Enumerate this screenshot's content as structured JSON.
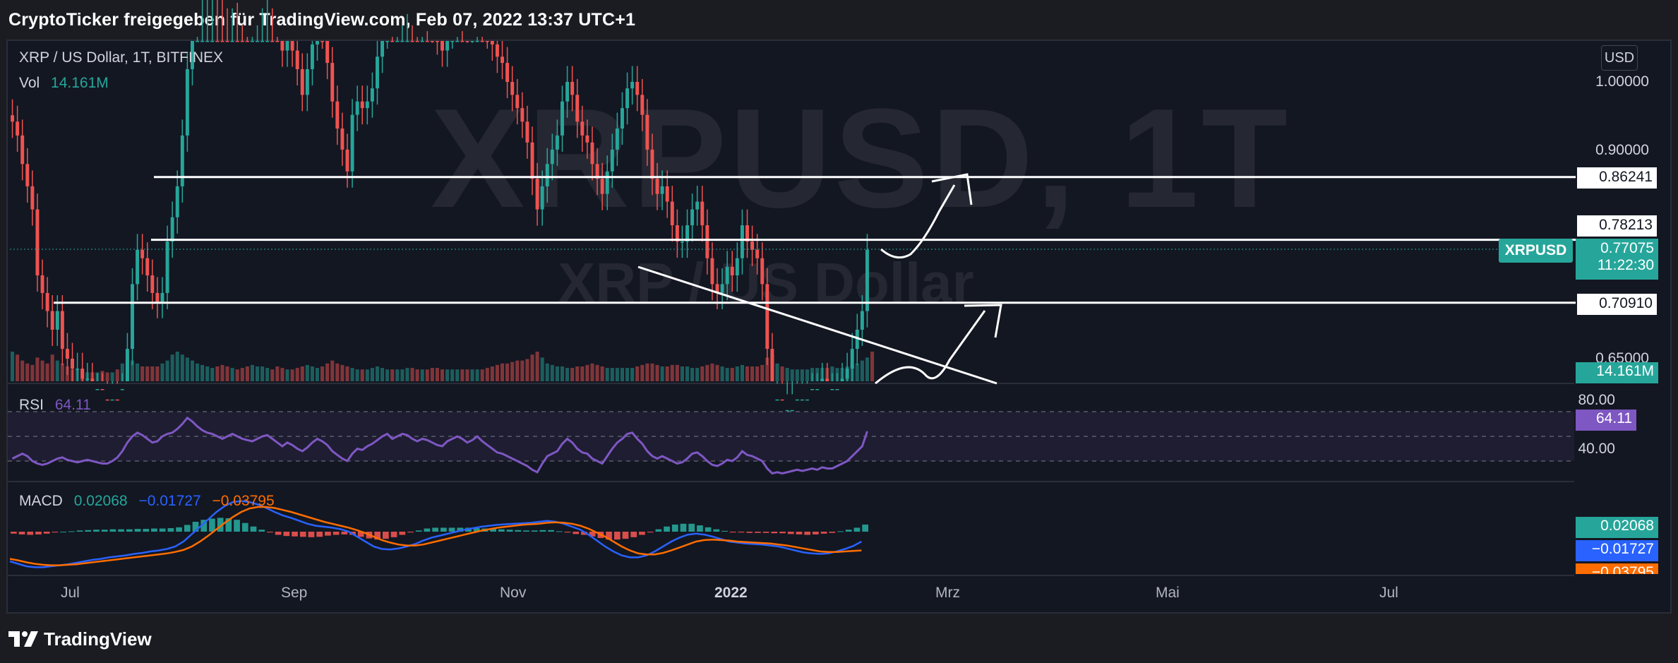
{
  "header": {
    "title": "CryptoTicker freigegeben für TradingView.com, Feb 07, 2022 13:37 UTC+1"
  },
  "legend": {
    "symbol_line": "XRP / US Dollar, 1T, BITFINEX",
    "vol_label": "Vol",
    "vol_value": "14.161M"
  },
  "watermark": {
    "main": "XRPUSD, 1T",
    "sub": "XRP / US Dollar"
  },
  "currency_button": "USD",
  "price_axis": {
    "labels": [
      "1.00000",
      "0.90000",
      "0.65000"
    ]
  },
  "price_tags": {
    "level_1": "0.86241",
    "level_2": "0.78213",
    "level_3": "0.70910",
    "symbol_label": "XRPUSD",
    "current_price": "0.77075",
    "countdown": "11:22:30",
    "volume": "14.161M"
  },
  "rsi": {
    "label": "RSI",
    "value": "64.11",
    "axis_80": "80.00",
    "axis_40": "40.00",
    "tag": "64.11"
  },
  "macd": {
    "label": "MACD",
    "hist": "0.02068",
    "macd_line": "−0.01727",
    "signal": "−0.03795",
    "tag_hist": "0.02068",
    "tag_macd": "−0.01727",
    "tag_signal": "−0.03795"
  },
  "time_axis": [
    "Jul",
    "Sep",
    "Nov",
    "2022",
    "Mrz",
    "Mai",
    "Jul"
  ],
  "footer": {
    "brand": "TradingView"
  },
  "colors": {
    "up": "#26a69a",
    "down": "#ef5350",
    "rsi": "#7e57c2",
    "macd": "#2962ff",
    "signal": "#ff6d00",
    "background": "#131722"
  },
  "chart_data": [
    {
      "type": "candlestick",
      "title": "XRP / US Dollar, 1T, BITFINEX",
      "x_ticks": [
        "Jul",
        "Sep",
        "Nov",
        "2022",
        "Mrz",
        "Mai",
        "Jul"
      ],
      "y_ticks": [
        1.0,
        0.9,
        0.65
      ],
      "price": [
        0.94,
        0.92,
        0.88,
        0.85,
        0.82,
        0.74,
        0.72,
        0.7,
        0.68,
        0.7,
        0.66,
        0.65,
        0.64,
        0.64,
        0.63,
        0.63,
        0.62,
        0.62,
        0.61,
        0.6,
        0.61,
        0.6,
        0.62,
        0.66,
        0.73,
        0.77,
        0.76,
        0.74,
        0.72,
        0.71,
        0.72,
        0.78,
        0.81,
        0.85,
        0.92,
        1.02,
        1.1,
        1.17,
        1.18,
        1.22,
        1.24,
        1.2,
        1.17,
        1.15,
        1.17,
        1.16,
        1.12,
        1.1,
        1.12,
        1.15,
        1.18,
        1.2,
        1.15,
        1.1,
        1.05,
        1.07,
        1.05,
        1.02,
        0.98,
        1.02,
        1.06,
        1.1,
        1.08,
        1.03,
        0.97,
        0.93,
        0.9,
        0.87,
        0.95,
        0.97,
        0.96,
        0.97,
        0.99,
        1.04,
        1.08,
        1.12,
        1.1,
        1.12,
        1.14,
        1.15,
        1.12,
        1.1,
        1.12,
        1.11,
        1.09,
        1.07,
        1.05,
        1.08,
        1.1,
        1.12,
        1.11,
        1.09,
        1.1,
        1.12,
        1.1,
        1.08,
        1.06,
        1.04,
        1.03,
        1.0,
        0.98,
        0.96,
        0.94,
        0.91,
        0.86,
        0.82,
        0.85,
        0.88,
        0.9,
        0.92,
        0.97,
        1.0,
        0.98,
        0.94,
        0.92,
        0.91,
        0.88,
        0.86,
        0.84,
        0.87,
        0.9,
        0.93,
        0.96,
        0.99,
        1.0,
        0.98,
        0.95,
        0.9,
        0.86,
        0.84,
        0.85,
        0.83,
        0.8,
        0.78,
        0.78,
        0.8,
        0.82,
        0.83,
        0.8,
        0.76,
        0.73,
        0.72,
        0.73,
        0.75,
        0.74,
        0.76,
        0.8,
        0.78,
        0.77,
        0.76,
        0.73,
        0.66,
        0.61,
        0.61,
        0.6,
        0.6,
        0.6,
        0.61,
        0.61,
        0.61,
        0.62,
        0.62,
        0.63,
        0.62,
        0.62,
        0.62,
        0.63,
        0.64,
        0.66,
        0.68,
        0.7,
        0.77
      ],
      "volume": [
        1.0,
        0.9,
        0.7,
        0.6,
        0.55,
        0.8,
        0.7,
        0.6,
        0.9,
        0.7,
        0.6,
        0.5,
        0.4,
        0.4,
        0.35,
        0.3,
        0.3,
        0.3,
        0.35,
        0.3,
        0.3,
        0.4,
        0.6,
        0.8,
        0.7,
        0.6,
        0.5,
        0.5,
        0.5,
        0.5,
        0.6,
        0.7,
        0.9,
        1.0,
        0.9,
        0.8,
        0.7,
        0.6,
        0.55,
        0.5,
        0.45,
        0.5,
        0.55,
        0.5,
        0.45,
        0.4,
        0.45,
        0.5,
        0.55,
        0.5,
        0.5,
        0.45,
        0.4,
        0.5,
        0.45,
        0.4,
        0.4,
        0.45,
        0.5,
        0.55,
        0.5,
        0.45,
        0.5,
        0.6,
        0.7,
        0.6,
        0.55,
        0.5,
        0.45,
        0.4,
        0.4,
        0.4,
        0.45,
        0.5,
        0.45,
        0.4,
        0.4,
        0.4,
        0.4,
        0.45,
        0.45,
        0.4,
        0.4,
        0.4,
        0.45,
        0.45,
        0.4,
        0.4,
        0.4,
        0.4,
        0.4,
        0.4,
        0.4,
        0.4,
        0.4,
        0.45,
        0.5,
        0.55,
        0.6,
        0.6,
        0.65,
        0.7,
        0.7,
        0.75,
        0.9,
        1.0,
        0.8,
        0.6,
        0.55,
        0.5,
        0.5,
        0.45,
        0.45,
        0.5,
        0.5,
        0.55,
        0.6,
        0.55,
        0.5,
        0.45,
        0.45,
        0.45,
        0.45,
        0.45,
        0.45,
        0.5,
        0.55,
        0.6,
        0.6,
        0.55,
        0.5,
        0.5,
        0.55,
        0.55,
        0.5,
        0.5,
        0.45,
        0.45,
        0.5,
        0.55,
        0.6,
        0.55,
        0.5,
        0.45,
        0.45,
        0.5,
        0.55,
        0.5,
        0.5,
        0.5,
        0.55,
        0.8,
        0.9,
        0.6,
        0.5,
        0.45,
        0.4,
        0.4,
        0.4,
        0.4,
        0.45,
        0.45,
        0.45,
        0.45,
        0.5,
        0.45,
        0.45,
        0.5,
        0.55,
        0.6,
        0.7,
        0.8,
        1.0
      ],
      "drawn_levels": [
        0.86241,
        0.78213,
        0.7091
      ],
      "last_price": 0.77075,
      "last_volume": "14.161M"
    },
    {
      "type": "line",
      "title": "RSI",
      "value": 64.11,
      "y_ticks": [
        80,
        40
      ],
      "values": [
        42,
        44,
        46,
        44,
        40,
        38,
        37,
        38,
        40,
        42,
        43,
        41,
        40,
        39,
        40,
        41,
        40,
        39,
        38,
        38,
        40,
        43,
        48,
        55,
        60,
        63,
        61,
        58,
        55,
        56,
        60,
        62,
        63,
        66,
        70,
        75,
        72,
        68,
        65,
        63,
        62,
        60,
        58,
        60,
        62,
        60,
        58,
        57,
        56,
        58,
        60,
        61,
        58,
        55,
        52,
        55,
        53,
        50,
        48,
        51,
        55,
        58,
        56,
        53,
        48,
        45,
        42,
        40,
        46,
        50,
        49,
        52,
        54,
        57,
        60,
        62,
        58,
        60,
        62,
        61,
        58,
        56,
        58,
        57,
        55,
        53,
        52,
        56,
        58,
        60,
        58,
        55,
        57,
        60,
        56,
        53,
        50,
        47,
        46,
        44,
        42,
        40,
        38,
        36,
        33,
        31,
        38,
        44,
        46,
        48,
        54,
        58,
        55,
        50,
        47,
        46,
        42,
        40,
        38,
        44,
        50,
        55,
        58,
        62,
        63,
        58,
        54,
        48,
        44,
        42,
        44,
        42,
        40,
        38,
        39,
        42,
        46,
        47,
        44,
        40,
        37,
        36,
        38,
        41,
        40,
        43,
        48,
        45,
        44,
        42,
        40,
        34,
        30,
        31,
        30,
        31,
        32,
        33,
        32,
        33,
        34,
        33,
        35,
        34,
        34,
        36,
        38,
        40,
        44,
        48,
        52,
        64.11
      ]
    },
    {
      "type": "line",
      "title": "MACD",
      "series": [
        {
          "name": "MACD",
          "values": [
            -0.06,
            -0.065,
            -0.07,
            -0.072,
            -0.072,
            -0.07,
            -0.068,
            -0.066,
            -0.063,
            -0.06,
            -0.057,
            -0.055,
            -0.052,
            -0.05,
            -0.048,
            -0.045,
            -0.043,
            -0.04,
            -0.038,
            -0.035,
            -0.03,
            -0.02,
            -0.005,
            0.01,
            0.025,
            0.04,
            0.052,
            0.06,
            0.062,
            0.06,
            0.055,
            0.048,
            0.04,
            0.033,
            0.028,
            0.022,
            0.016,
            0.012,
            0.01,
            0.008,
            0.005,
            0.0,
            -0.01,
            -0.02,
            -0.03,
            -0.035,
            -0.036,
            -0.034,
            -0.03,
            -0.025,
            -0.018,
            -0.012,
            -0.008,
            -0.004,
            0.0,
            0.004,
            0.007,
            0.01,
            0.012,
            0.014,
            0.015,
            0.016,
            0.017,
            0.018,
            0.02,
            0.022,
            0.02,
            0.016,
            0.01,
            0.004,
            -0.006,
            -0.018,
            -0.03,
            -0.04,
            -0.048,
            -0.052,
            -0.052,
            -0.048,
            -0.04,
            -0.03,
            -0.02,
            -0.012,
            -0.006,
            -0.004,
            -0.006,
            -0.01,
            -0.015,
            -0.02,
            -0.022,
            -0.024,
            -0.025,
            -0.026,
            -0.028,
            -0.03,
            -0.034,
            -0.038,
            -0.042,
            -0.044,
            -0.045,
            -0.044,
            -0.04,
            -0.035,
            -0.029,
            -0.02
          ]
        },
        {
          "name": "Signal",
          "values": [
            -0.055,
            -0.058,
            -0.062,
            -0.065,
            -0.067,
            -0.068,
            -0.068,
            -0.067,
            -0.066,
            -0.064,
            -0.062,
            -0.06,
            -0.058,
            -0.056,
            -0.054,
            -0.052,
            -0.05,
            -0.048,
            -0.046,
            -0.044,
            -0.041,
            -0.037,
            -0.03,
            -0.02,
            -0.008,
            0.005,
            0.018,
            0.03,
            0.04,
            0.047,
            0.05,
            0.05,
            0.048,
            0.044,
            0.04,
            0.035,
            0.03,
            0.025,
            0.02,
            0.016,
            0.012,
            0.008,
            0.003,
            -0.003,
            -0.01,
            -0.017,
            -0.022,
            -0.026,
            -0.028,
            -0.028,
            -0.026,
            -0.022,
            -0.018,
            -0.014,
            -0.01,
            -0.006,
            -0.002,
            0.002,
            0.005,
            0.008,
            0.01,
            0.012,
            0.014,
            0.015,
            0.016,
            0.018,
            0.019,
            0.018,
            0.016,
            0.012,
            0.006,
            -0.002,
            -0.01,
            -0.02,
            -0.03,
            -0.038,
            -0.044,
            -0.046,
            -0.046,
            -0.043,
            -0.038,
            -0.032,
            -0.026,
            -0.02,
            -0.017,
            -0.016,
            -0.017,
            -0.018,
            -0.02,
            -0.021,
            -0.022,
            -0.023,
            -0.024,
            -0.026,
            -0.028,
            -0.031,
            -0.034,
            -0.037,
            -0.04,
            -0.041,
            -0.041,
            -0.04,
            -0.039,
            -0.038
          ]
        }
      ],
      "hist_last": 0.02068,
      "macd_last": -0.01727,
      "signal_last": -0.03795
    }
  ]
}
